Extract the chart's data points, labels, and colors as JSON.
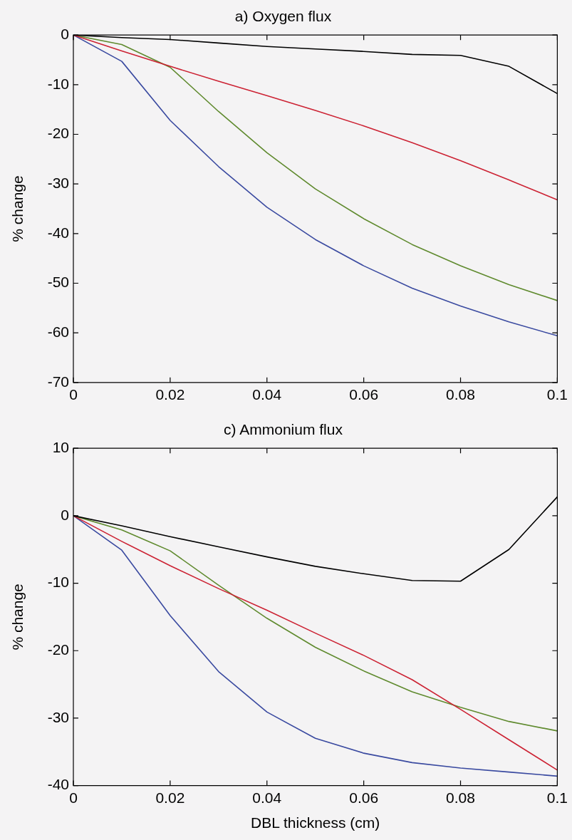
{
  "chart_data": [
    {
      "type": "line",
      "title": "a) Oxygen flux",
      "ylabel": "% change",
      "x": [
        0,
        0.01,
        0.02,
        0.03,
        0.04,
        0.05,
        0.06,
        0.07,
        0.08,
        0.09,
        0.1
      ],
      "xlim": [
        0,
        0.1
      ],
      "xticks": [
        0,
        0.02,
        0.04,
        0.06,
        0.08,
        0.1
      ],
      "ylim": [
        -70,
        0
      ],
      "yticks": [
        -70,
        -60,
        -50,
        -40,
        -30,
        -20,
        -10,
        0
      ],
      "grid": false,
      "legend": false,
      "marker": "none",
      "line_style": "solid",
      "series": [
        {
          "color": "#000000",
          "values": [
            0,
            -0.5,
            -0.9,
            -1.6,
            -2.3,
            -2.8,
            -3.3,
            -3.9,
            -4.1,
            -6.3,
            -11.8
          ]
        },
        {
          "color": "#cc2233",
          "values": [
            0,
            -3.2,
            -6.3,
            -9.3,
            -12.2,
            -15.2,
            -18.3,
            -21.7,
            -25.3,
            -29.2,
            -33.2
          ]
        },
        {
          "color": "#5f8a2e",
          "values": [
            0,
            -1.9,
            -6.5,
            -15.4,
            -23.7,
            -31,
            -37,
            -42.2,
            -46.5,
            -50.3,
            -53.5
          ]
        },
        {
          "color": "#3a4aa0",
          "values": [
            0,
            -5.3,
            -17.2,
            -26.5,
            -34.7,
            -41.2,
            -46.5,
            -51,
            -54.6,
            -57.8,
            -60.6
          ]
        }
      ]
    },
    {
      "type": "line",
      "title": "c) Ammonium flux",
      "xlabel": "DBL thickness (cm)",
      "ylabel": "% change",
      "x": [
        0,
        0.01,
        0.02,
        0.03,
        0.04,
        0.05,
        0.06,
        0.07,
        0.08,
        0.09,
        0.1
      ],
      "xlim": [
        0,
        0.1
      ],
      "xticks": [
        0,
        0.02,
        0.04,
        0.06,
        0.08,
        0.1
      ],
      "ylim": [
        -40,
        10
      ],
      "yticks": [
        -40,
        -30,
        -20,
        -10,
        0,
        10
      ],
      "grid": false,
      "legend": false,
      "marker": "none",
      "line_style": "solid",
      "series": [
        {
          "color": "#000000",
          "values": [
            0,
            -1.5,
            -3.1,
            -4.6,
            -6.1,
            -7.5,
            -8.6,
            -9.6,
            -9.7,
            -5,
            2.8
          ]
        },
        {
          "color": "#cc2233",
          "values": [
            0,
            -3.8,
            -7.4,
            -10.8,
            -14,
            -17.4,
            -20.7,
            -24.3,
            -28.7,
            -33.2,
            -37.7
          ]
        },
        {
          "color": "#5f8a2e",
          "values": [
            0,
            -2.1,
            -5.2,
            -10.3,
            -15.2,
            -19.5,
            -23,
            -26.1,
            -28.4,
            -30.5,
            -31.9
          ]
        },
        {
          "color": "#3a4aa0",
          "values": [
            0,
            -5.1,
            -14.8,
            -23.1,
            -29.1,
            -33,
            -35.2,
            -36.6,
            -37.4,
            -38,
            -38.6
          ]
        }
      ]
    }
  ]
}
